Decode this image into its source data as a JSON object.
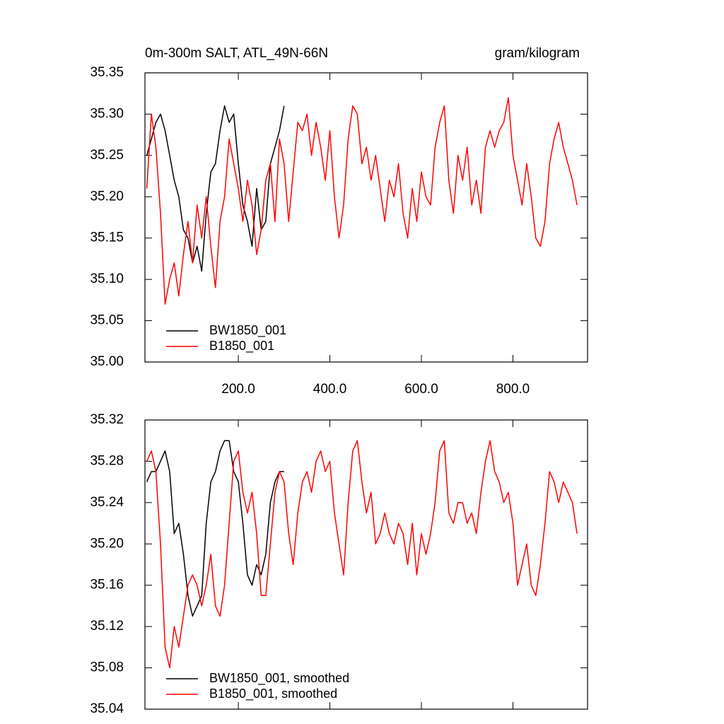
{
  "chart_data": [
    {
      "type": "line",
      "title": "0m-300m SALT, ATL_49N-66N",
      "units": "gram/kilogram",
      "xlim": [
        -4,
        963
      ],
      "ylim": [
        35.0,
        35.35
      ],
      "xticks": [
        {
          "value": 200,
          "label": "200.0"
        },
        {
          "value": 400,
          "label": "400.0"
        },
        {
          "value": 600,
          "label": "600.0"
        },
        {
          "value": 800,
          "label": "800.0"
        }
      ],
      "yticks": [
        {
          "value": 35.0,
          "label": "35.00"
        },
        35.05,
        {
          "value": 35.1,
          "label": "35.10"
        },
        35.15,
        {
          "value": 35.2,
          "label": "35.20"
        },
        35.25,
        {
          "value": 35.3,
          "label": "35.30"
        },
        35.35
      ],
      "series": [
        {
          "name": "BW1850_001",
          "color": "#000000",
          "x": [
            0,
            10,
            20,
            30,
            40,
            50,
            60,
            70,
            80,
            90,
            100,
            110,
            120,
            130,
            140,
            150,
            160,
            170,
            180,
            190,
            200,
            210,
            220,
            230,
            240,
            250,
            260,
            270,
            280,
            290,
            300
          ],
          "values": [
            35.25,
            35.27,
            35.29,
            35.3,
            35.28,
            35.25,
            35.22,
            35.2,
            35.16,
            35.15,
            35.12,
            35.14,
            35.11,
            35.18,
            35.23,
            35.24,
            35.28,
            35.31,
            35.29,
            35.3,
            35.24,
            35.19,
            35.17,
            35.14,
            35.21,
            35.16,
            35.17,
            35.24,
            35.26,
            35.28,
            35.31
          ]
        },
        {
          "name": "B1850_001",
          "color": "#ff0000",
          "x": [
            0,
            10,
            20,
            30,
            40,
            50,
            60,
            70,
            80,
            90,
            100,
            110,
            120,
            130,
            140,
            150,
            160,
            170,
            180,
            190,
            200,
            210,
            220,
            230,
            240,
            250,
            260,
            270,
            280,
            290,
            300,
            310,
            320,
            330,
            340,
            350,
            360,
            370,
            380,
            390,
            400,
            410,
            420,
            430,
            440,
            450,
            460,
            470,
            480,
            490,
            500,
            510,
            520,
            530,
            540,
            550,
            560,
            570,
            580,
            590,
            600,
            610,
            620,
            630,
            640,
            650,
            660,
            670,
            680,
            690,
            700,
            710,
            720,
            730,
            740,
            750,
            760,
            770,
            780,
            790,
            800,
            810,
            820,
            830,
            840,
            850,
            860,
            870,
            880,
            890,
            900,
            910,
            920,
            930,
            940
          ],
          "values": [
            35.21,
            35.3,
            35.26,
            35.18,
            35.07,
            35.1,
            35.12,
            35.08,
            35.13,
            35.17,
            35.12,
            35.19,
            35.15,
            35.2,
            35.14,
            35.09,
            35.17,
            35.2,
            35.27,
            35.24,
            35.21,
            35.17,
            35.22,
            35.19,
            35.13,
            35.16,
            35.22,
            35.24,
            35.17,
            35.27,
            35.24,
            35.17,
            35.23,
            35.29,
            35.28,
            35.3,
            35.25,
            35.29,
            35.26,
            35.22,
            35.28,
            35.2,
            35.15,
            35.19,
            35.27,
            35.31,
            35.3,
            35.24,
            35.26,
            35.22,
            35.25,
            35.21,
            35.17,
            35.22,
            35.2,
            35.24,
            35.18,
            35.15,
            35.21,
            35.17,
            35.23,
            35.2,
            35.19,
            35.26,
            35.29,
            35.31,
            35.22,
            35.18,
            35.25,
            35.22,
            35.26,
            35.19,
            35.22,
            35.18,
            35.26,
            35.28,
            35.26,
            35.28,
            35.29,
            35.32,
            35.25,
            35.22,
            35.19,
            35.24,
            35.2,
            35.15,
            35.14,
            35.17,
            35.24,
            35.27,
            35.29,
            35.26,
            35.24,
            35.22,
            35.19
          ]
        }
      ]
    },
    {
      "type": "line",
      "xlim": [
        -4,
        963
      ],
      "ylim": [
        35.04,
        35.32
      ],
      "xticks": [
        200,
        400,
        600,
        800
      ],
      "yticks": [
        35.04,
        35.08,
        35.12,
        35.16,
        {
          "value": 35.2,
          "label": "35.20"
        },
        35.24,
        35.28,
        35.32
      ],
      "series": [
        {
          "name": "BW1850_001, smoothed",
          "color": "#000000",
          "x": [
            0,
            10,
            20,
            30,
            40,
            50,
            60,
            70,
            80,
            90,
            100,
            110,
            120,
            130,
            140,
            150,
            160,
            170,
            180,
            190,
            200,
            210,
            220,
            230,
            240,
            250,
            260,
            270,
            280,
            290,
            300
          ],
          "values": [
            35.26,
            35.27,
            35.27,
            35.28,
            35.29,
            35.27,
            35.21,
            35.22,
            35.19,
            35.15,
            35.13,
            35.14,
            35.15,
            35.22,
            35.26,
            35.27,
            35.29,
            35.3,
            35.3,
            35.27,
            35.26,
            35.22,
            35.17,
            35.16,
            35.18,
            35.17,
            35.19,
            35.24,
            35.26,
            35.27,
            35.27
          ]
        },
        {
          "name": "B1850_001, smoothed",
          "color": "#ff0000",
          "x": [
            0,
            10,
            20,
            30,
            40,
            50,
            60,
            70,
            80,
            90,
            100,
            110,
            120,
            130,
            140,
            150,
            160,
            170,
            180,
            190,
            200,
            210,
            220,
            230,
            240,
            250,
            260,
            270,
            280,
            290,
            300,
            310,
            320,
            330,
            340,
            350,
            360,
            370,
            380,
            390,
            400,
            410,
            420,
            430,
            440,
            450,
            460,
            470,
            480,
            490,
            500,
            510,
            520,
            530,
            540,
            550,
            560,
            570,
            580,
            590,
            600,
            610,
            620,
            630,
            640,
            650,
            660,
            670,
            680,
            690,
            700,
            710,
            720,
            730,
            740,
            750,
            760,
            770,
            780,
            790,
            800,
            810,
            820,
            830,
            840,
            850,
            860,
            870,
            880,
            890,
            900,
            910,
            920,
            930,
            940
          ],
          "values": [
            35.28,
            35.29,
            35.27,
            35.2,
            35.1,
            35.08,
            35.12,
            35.1,
            35.13,
            35.16,
            35.17,
            35.16,
            35.14,
            35.16,
            35.19,
            35.14,
            35.13,
            35.16,
            35.22,
            35.28,
            35.29,
            35.25,
            35.23,
            35.25,
            35.21,
            35.15,
            35.15,
            35.2,
            35.25,
            35.27,
            35.26,
            35.21,
            35.18,
            35.23,
            35.26,
            35.27,
            35.25,
            35.28,
            35.29,
            35.27,
            35.28,
            35.23,
            35.2,
            35.17,
            35.24,
            35.29,
            35.3,
            35.26,
            35.23,
            35.25,
            35.2,
            35.21,
            35.23,
            35.21,
            35.2,
            35.22,
            35.21,
            35.18,
            35.22,
            35.17,
            35.21,
            35.19,
            35.21,
            35.24,
            35.29,
            35.3,
            35.23,
            35.22,
            35.24,
            35.24,
            35.22,
            35.23,
            35.21,
            35.25,
            35.28,
            35.3,
            35.27,
            35.26,
            35.24,
            35.25,
            35.22,
            35.16,
            35.18,
            35.2,
            35.16,
            35.15,
            35.18,
            35.22,
            35.27,
            35.26,
            35.24,
            35.26,
            35.25,
            35.24,
            35.21
          ]
        }
      ]
    }
  ]
}
